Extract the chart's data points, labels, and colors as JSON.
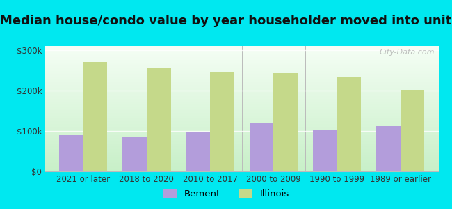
{
  "title": "Median house/condo value by year householder moved into unit",
  "categories": [
    "2021 or later",
    "2018 to 2020",
    "2010 to 2017",
    "2000 to 2009",
    "1990 to 1999",
    "1989 or earlier"
  ],
  "bement_values": [
    90000,
    85000,
    98000,
    120000,
    102000,
    112000
  ],
  "illinois_values": [
    270000,
    255000,
    245000,
    243000,
    235000,
    202000
  ],
  "bement_color": "#b39ddb",
  "illinois_color": "#c5d98a",
  "outer_background": "#00e8f0",
  "ylim": [
    0,
    310000
  ],
  "yticks": [
    0,
    100000,
    200000,
    300000
  ],
  "ytick_labels": [
    "$0",
    "$100k",
    "$200k",
    "$300k"
  ],
  "legend_labels": [
    "Bement",
    "Illinois"
  ],
  "watermark": "City-Data.com",
  "bar_width": 0.38,
  "title_fontsize": 13,
  "axis_fontsize": 8.5,
  "legend_fontsize": 9.5,
  "grad_bottom_color": "#c8f0c8",
  "grad_top_color": "#f5fef5"
}
